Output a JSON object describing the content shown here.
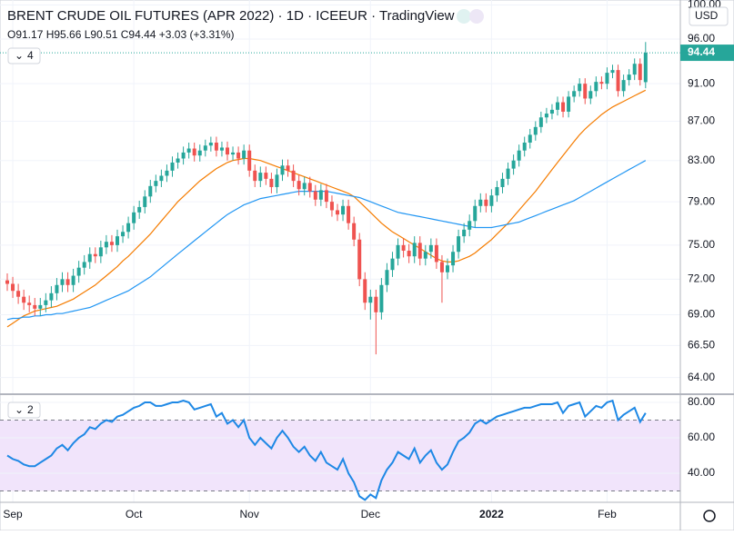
{
  "chart_data": [
    {
      "type": "candlestick",
      "title": "BRENT CRUDE OIL FUTURES (APR 2022) · 1D · ICEEUR · TradingView",
      "subtitle": "O91.17 H95.66 L90.51 C94.44 +3.03 (+3.31%)",
      "currency": "USD",
      "indicators_label": "4",
      "categories": [
        null,
        "Sep",
        null,
        null,
        null,
        null,
        null,
        null,
        null,
        null,
        null,
        null,
        null,
        null,
        null,
        null,
        null,
        null,
        null,
        null,
        null,
        null,
        null,
        "Oct",
        null,
        null,
        null,
        null,
        null,
        null,
        null,
        null,
        null,
        null,
        null,
        null,
        null,
        null,
        null,
        null,
        null,
        null,
        null,
        null,
        "Nov",
        null,
        null,
        null,
        null,
        null,
        null,
        null,
        null,
        null,
        null,
        null,
        null,
        null,
        null,
        null,
        null,
        null,
        null,
        null,
        null,
        null,
        "Dec",
        null,
        null,
        null,
        null,
        null,
        null,
        null,
        null,
        null,
        null,
        null,
        null,
        null,
        null,
        null,
        null,
        null,
        null,
        null,
        null,
        null,
        "2022",
        null,
        null,
        null,
        null,
        null,
        null,
        null,
        null,
        null,
        null,
        null,
        null,
        null,
        null,
        null,
        null,
        null,
        null,
        null,
        null,
        "Feb",
        null,
        null,
        null,
        null,
        null,
        null,
        null
      ],
      "open": [
        71.9,
        71.6,
        71.0,
        70.5,
        70.0,
        69.8,
        69.5,
        69.8,
        70.2,
        70.8,
        71.5,
        72.0,
        71.5,
        72.3,
        73.0,
        73.5,
        74.2,
        74.0,
        74.8,
        75.3,
        75.0,
        75.8,
        76.2,
        77.0,
        78.0,
        78.5,
        79.5,
        80.5,
        81.0,
        81.5,
        82.0,
        82.8,
        83.2,
        83.8,
        84.2,
        83.5,
        84.0,
        84.5,
        84.8,
        84.0,
        84.3,
        83.6,
        83.8,
        83.2,
        84.0,
        82.0,
        81.0,
        81.8,
        81.2,
        80.4,
        81.6,
        82.5,
        82.0,
        81.0,
        80.2,
        80.8,
        80.0,
        79.2,
        80.1,
        79.0,
        78.2,
        77.8,
        78.6,
        77.0,
        75.5,
        72.0,
        70.0,
        70.5,
        69.2,
        71.5,
        72.8,
        73.8,
        75.0,
        74.5,
        74.0,
        75.2,
        73.8,
        74.4,
        75.0,
        73.5,
        72.6,
        73.2,
        74.4,
        75.8,
        76.4,
        77.2,
        78.6,
        79.2,
        78.6,
        79.6,
        80.4,
        81.2,
        82.2,
        83.0,
        84.0,
        84.8,
        85.6,
        86.4,
        87.4,
        87.8,
        88.2,
        89.0,
        88.0,
        89.6,
        90.2,
        91.0,
        89.4,
        90.2,
        91.2,
        91.0,
        92.2,
        92.5,
        90.2,
        91.4,
        92.0,
        93.2,
        91.17
      ],
      "high": [
        72.5,
        72.2,
        71.6,
        71.1,
        70.6,
        70.4,
        70.4,
        70.8,
        71.4,
        72.1,
        72.6,
        72.6,
        72.9,
        73.6,
        74.1,
        74.8,
        74.8,
        75.4,
        75.9,
        75.9,
        76.4,
        76.8,
        77.6,
        78.6,
        79.1,
        80.1,
        81.1,
        81.6,
        82.1,
        82.6,
        83.4,
        83.8,
        84.4,
        84.8,
        84.8,
        84.6,
        85.1,
        85.4,
        85.4,
        84.9,
        84.9,
        84.4,
        84.4,
        84.6,
        84.6,
        82.6,
        82.4,
        82.4,
        81.8,
        82.2,
        83.1,
        83.1,
        82.6,
        81.6,
        81.4,
        81.4,
        80.6,
        80.7,
        80.7,
        79.6,
        78.8,
        79.2,
        79.2,
        77.6,
        76.1,
        72.6,
        71.1,
        71.1,
        72.1,
        73.4,
        74.4,
        75.6,
        75.6,
        75.1,
        75.8,
        75.8,
        75.0,
        75.6,
        75.6,
        74.1,
        73.8,
        75.0,
        76.4,
        77.0,
        77.8,
        79.2,
        79.8,
        79.8,
        80.2,
        81.0,
        81.8,
        82.8,
        83.6,
        84.6,
        85.4,
        86.2,
        87.0,
        88.0,
        88.4,
        88.8,
        89.6,
        89.6,
        90.2,
        90.8,
        91.6,
        91.6,
        90.8,
        91.8,
        91.8,
        92.8,
        93.1,
        93.1,
        92.0,
        92.6,
        93.8,
        93.8,
        95.66
      ],
      "low": [
        71.0,
        70.4,
        69.9,
        69.4,
        69.2,
        68.9,
        68.9,
        69.2,
        69.6,
        70.2,
        70.9,
        70.9,
        70.9,
        71.7,
        72.4,
        72.9,
        73.4,
        73.4,
        74.2,
        74.4,
        74.4,
        75.2,
        75.6,
        76.4,
        77.4,
        77.9,
        78.9,
        79.9,
        80.4,
        80.9,
        81.4,
        82.2,
        82.6,
        83.2,
        82.9,
        82.9,
        83.4,
        83.9,
        83.4,
        83.4,
        83.0,
        83.0,
        82.6,
        82.6,
        81.4,
        80.4,
        80.4,
        80.6,
        79.8,
        79.8,
        81.0,
        81.4,
        80.4,
        79.6,
        79.6,
        79.4,
        78.6,
        78.6,
        78.4,
        77.6,
        77.2,
        77.2,
        76.4,
        74.9,
        71.4,
        69.4,
        68.6,
        65.8,
        68.6,
        70.9,
        72.2,
        73.2,
        73.9,
        73.4,
        73.4,
        73.2,
        73.2,
        73.8,
        72.9,
        70.0,
        72.0,
        72.6,
        73.8,
        75.2,
        75.8,
        76.6,
        78.0,
        78.0,
        78.0,
        79.0,
        79.8,
        80.6,
        81.6,
        82.4,
        83.4,
        84.2,
        85.0,
        85.8,
        86.8,
        87.2,
        87.6,
        87.4,
        87.4,
        89.0,
        89.6,
        88.8,
        88.8,
        89.6,
        90.4,
        90.4,
        91.6,
        89.6,
        89.6,
        90.8,
        91.4,
        90.8,
        90.51
      ],
      "close": [
        71.6,
        71.0,
        70.5,
        70.0,
        69.8,
        69.5,
        69.8,
        70.2,
        70.8,
        71.5,
        72.0,
        71.5,
        72.3,
        73.0,
        73.5,
        74.2,
        74.0,
        74.8,
        75.3,
        75.0,
        75.8,
        76.2,
        77.0,
        78.0,
        78.5,
        79.5,
        80.5,
        81.0,
        81.5,
        82.0,
        82.8,
        83.2,
        83.8,
        84.2,
        83.5,
        84.0,
        84.5,
        84.8,
        84.0,
        84.3,
        83.6,
        83.8,
        83.2,
        84.0,
        82.0,
        81.0,
        81.8,
        81.2,
        80.4,
        81.6,
        82.5,
        82.0,
        81.0,
        80.2,
        80.8,
        80.0,
        79.2,
        80.1,
        79.0,
        78.2,
        77.8,
        78.6,
        77.0,
        75.5,
        72.0,
        70.0,
        70.5,
        69.2,
        71.5,
        72.8,
        73.8,
        75.0,
        74.5,
        74.0,
        75.2,
        73.8,
        74.4,
        75.0,
        73.5,
        72.6,
        73.2,
        74.4,
        75.8,
        76.4,
        77.2,
        78.6,
        79.2,
        78.6,
        79.6,
        80.4,
        81.2,
        82.2,
        83.0,
        84.0,
        84.8,
        85.6,
        86.4,
        87.4,
        87.8,
        88.2,
        89.0,
        88.0,
        89.6,
        90.2,
        91.0,
        89.4,
        90.2,
        91.2,
        91.0,
        92.2,
        92.5,
        90.2,
        91.4,
        92.0,
        93.2,
        91.4,
        94.44
      ],
      "up_color": "#26a69a",
      "down_color": "#ef5350",
      "overlays": [
        {
          "color": "#f57c00",
          "values": [
            68.0,
            68.3,
            68.6,
            68.9,
            69.1,
            69.3,
            69.4,
            69.5,
            69.6,
            69.7,
            69.9,
            70.1,
            70.3,
            70.6,
            70.9,
            71.2,
            71.5,
            71.9,
            72.3,
            72.7,
            73.1,
            73.6,
            74.0,
            74.5,
            75.0,
            75.5,
            76.0,
            76.6,
            77.2,
            77.8,
            78.4,
            79.0,
            79.5,
            80.0,
            80.5,
            81.0,
            81.4,
            81.8,
            82.2,
            82.5,
            82.8,
            83.0,
            83.1,
            83.2,
            83.2,
            83.1,
            83.0,
            82.8,
            82.6,
            82.4,
            82.2,
            82.0,
            81.8,
            81.6,
            81.4,
            81.2,
            81.0,
            80.8,
            80.6,
            80.4,
            80.2,
            80.0,
            79.8,
            79.5,
            79.0,
            78.5,
            78.0,
            77.5,
            77.0,
            76.6,
            76.2,
            75.9,
            75.6,
            75.3,
            75.0,
            74.7,
            74.4,
            74.1,
            73.8,
            73.6,
            73.5,
            73.5,
            73.6,
            73.8,
            74.0,
            74.3,
            74.7,
            75.1,
            75.5,
            76.0,
            76.5,
            77.0,
            77.6,
            78.2,
            78.8,
            79.4,
            80.0,
            80.7,
            81.4,
            82.1,
            82.8,
            83.5,
            84.2,
            84.9,
            85.6,
            86.2,
            86.7,
            87.2,
            87.7,
            88.1,
            88.5,
            88.8,
            89.1,
            89.4,
            89.7,
            90.0,
            90.3
          ]
        },
        {
          "color": "#2196f3",
          "values": [
            68.6,
            68.7,
            68.7,
            68.8,
            68.8,
            68.9,
            68.9,
            69.0,
            69.0,
            69.1,
            69.1,
            69.2,
            69.3,
            69.4,
            69.5,
            69.6,
            69.8,
            70.0,
            70.2,
            70.4,
            70.6,
            70.8,
            71.0,
            71.3,
            71.6,
            71.9,
            72.2,
            72.6,
            73.0,
            73.4,
            73.8,
            74.2,
            74.6,
            75.0,
            75.4,
            75.8,
            76.2,
            76.6,
            77.0,
            77.4,
            77.8,
            78.1,
            78.4,
            78.7,
            78.9,
            79.1,
            79.3,
            79.4,
            79.5,
            79.6,
            79.7,
            79.8,
            79.9,
            80.0,
            80.0,
            80.0,
            80.0,
            80.0,
            80.0,
            79.9,
            79.8,
            79.7,
            79.6,
            79.5,
            79.4,
            79.2,
            79.0,
            78.8,
            78.6,
            78.4,
            78.2,
            78.0,
            77.9,
            77.8,
            77.7,
            77.6,
            77.5,
            77.4,
            77.3,
            77.2,
            77.1,
            77.0,
            76.9,
            76.8,
            76.7,
            76.6,
            76.6,
            76.6,
            76.6,
            76.7,
            76.8,
            76.9,
            77.0,
            77.1,
            77.3,
            77.5,
            77.7,
            77.9,
            78.1,
            78.3,
            78.5,
            78.7,
            78.9,
            79.1,
            79.4,
            79.7,
            80.0,
            80.3,
            80.6,
            80.9,
            81.2,
            81.5,
            81.8,
            82.1,
            82.4,
            82.7,
            83.0
          ]
        }
      ],
      "log": true,
      "grid": true,
      "ylim": [
        62.8,
        100.6
      ],
      "yticks": [
        {
          "value": 64,
          "label": "64.00"
        },
        {
          "value": 66.5,
          "label": "66.50"
        },
        {
          "value": 69,
          "label": "69.00"
        },
        {
          "value": 72,
          "label": "72.00"
        },
        {
          "value": 75,
          "label": "75.00"
        },
        {
          "value": 79,
          "label": "79.00"
        },
        {
          "value": 83,
          "label": "83.00"
        },
        {
          "value": 87,
          "label": "87.00"
        },
        {
          "value": 91,
          "label": "91.00"
        },
        {
          "value": 96,
          "label": "96.00"
        },
        {
          "value": 100,
          "label": "100.00"
        }
      ],
      "price_tag": 94.44,
      "price_tag_color": "#26a69a"
    },
    {
      "type": "line",
      "indicators_label": "2",
      "values": [
        50,
        48,
        47,
        45,
        44,
        44,
        46,
        48,
        50,
        54,
        56,
        53,
        57,
        60,
        62,
        66,
        65,
        68,
        70,
        69,
        72,
        73,
        75,
        77,
        78,
        80,
        80,
        78,
        78,
        79,
        80,
        80,
        81,
        80,
        76,
        77,
        78,
        79,
        72,
        74,
        68,
        70,
        66,
        70,
        60,
        56,
        60,
        57,
        54,
        60,
        64,
        60,
        55,
        52,
        55,
        50,
        47,
        52,
        46,
        44,
        42,
        48,
        40,
        35,
        27,
        25,
        28,
        26,
        36,
        42,
        46,
        52,
        50,
        48,
        54,
        46,
        50,
        53,
        46,
        42,
        45,
        52,
        58,
        60,
        63,
        68,
        70,
        68,
        70,
        72,
        73,
        74,
        75,
        76,
        77,
        77,
        78,
        79,
        79,
        79,
        80,
        74,
        78,
        79,
        80,
        72,
        75,
        78,
        77,
        80,
        81,
        70,
        73,
        75,
        77,
        69,
        74
      ],
      "color": "#1e88e5",
      "ylim": [
        23.6,
        83.6
      ],
      "yticks": [
        {
          "value": 40,
          "label": "40.00"
        },
        {
          "value": 60,
          "label": "60.00"
        },
        {
          "value": 80,
          "label": "80.00"
        }
      ],
      "band": [
        30,
        70
      ],
      "band_color": "#f1e4fb"
    }
  ]
}
